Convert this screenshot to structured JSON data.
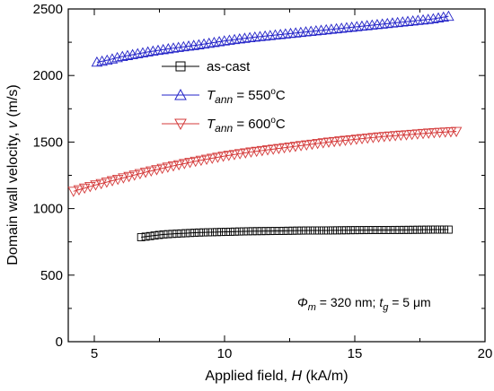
{
  "chart_data": {
    "type": "scatter",
    "xlabel": "Applied field, H (kA/m)",
    "ylabel": "Domain wall velocity, v (m/s)",
    "xlim": [
      4,
      20
    ],
    "ylim": [
      0,
      2500
    ],
    "xticks": [
      5,
      10,
      15,
      20
    ],
    "yticks": [
      0,
      500,
      1000,
      1500,
      2000,
      2500
    ],
    "grid": false,
    "legend_position": "upper-center",
    "series": [
      {
        "name": "as-cast",
        "marker": "square",
        "color": "#000000",
        "x_range": [
          6.8,
          18.6
        ],
        "x": [
          6.8,
          7.2,
          7.6,
          8,
          8.5,
          9,
          10,
          11,
          12,
          13,
          14,
          15,
          16,
          17,
          18,
          18.6
        ],
        "y": [
          785,
          795,
          805,
          810,
          815,
          820,
          825,
          830,
          832,
          835,
          836,
          838,
          839,
          840,
          842,
          842
        ]
      },
      {
        "name": "T_ann = 550°C",
        "marker": "triangle-up",
        "color": "#2323c8",
        "x_range": [
          5.1,
          18.6
        ],
        "x": [
          5.1,
          5.5,
          6,
          7,
          8,
          9,
          10,
          11,
          12,
          13,
          14,
          15,
          16,
          17,
          18,
          18.6
        ],
        "y": [
          2100,
          2115,
          2140,
          2175,
          2205,
          2230,
          2260,
          2285,
          2305,
          2325,
          2345,
          2365,
          2385,
          2405,
          2425,
          2445
        ]
      },
      {
        "name": "T_ann = 600°C",
        "marker": "triangle-down",
        "color": "#d43a3a",
        "x_range": [
          4.2,
          18.9
        ],
        "x": [
          4.2,
          5,
          6,
          7,
          8,
          9,
          10,
          11,
          12,
          13,
          14,
          15,
          16,
          17,
          18,
          18.9
        ],
        "y": [
          1130,
          1175,
          1225,
          1275,
          1320,
          1360,
          1395,
          1425,
          1450,
          1475,
          1500,
          1520,
          1540,
          1555,
          1570,
          1580
        ]
      }
    ],
    "annotation": {
      "phi_symbol": "Φ",
      "phi_sub": "m",
      "phi_value": " = 320 nm; ",
      "t_symbol": "t",
      "t_sub": "g",
      "t_value": " = 5 μm"
    }
  },
  "legend": {
    "items": [
      {
        "plain": "as-cast"
      },
      {
        "var": "T",
        "sub": "ann",
        "eq": " = 550",
        "sup": "o",
        "unit": "C"
      },
      {
        "var": "T",
        "sub": "ann",
        "eq": " = 600",
        "sup": "o",
        "unit": "C"
      }
    ]
  },
  "axis_title_parts": {
    "y_prefix": "Domain wall velocity, ",
    "y_var": "v",
    "y_suffix": " (m/s)",
    "x_prefix": "Applied field, ",
    "x_var": "H",
    "x_suffix": " (kA/m)"
  }
}
